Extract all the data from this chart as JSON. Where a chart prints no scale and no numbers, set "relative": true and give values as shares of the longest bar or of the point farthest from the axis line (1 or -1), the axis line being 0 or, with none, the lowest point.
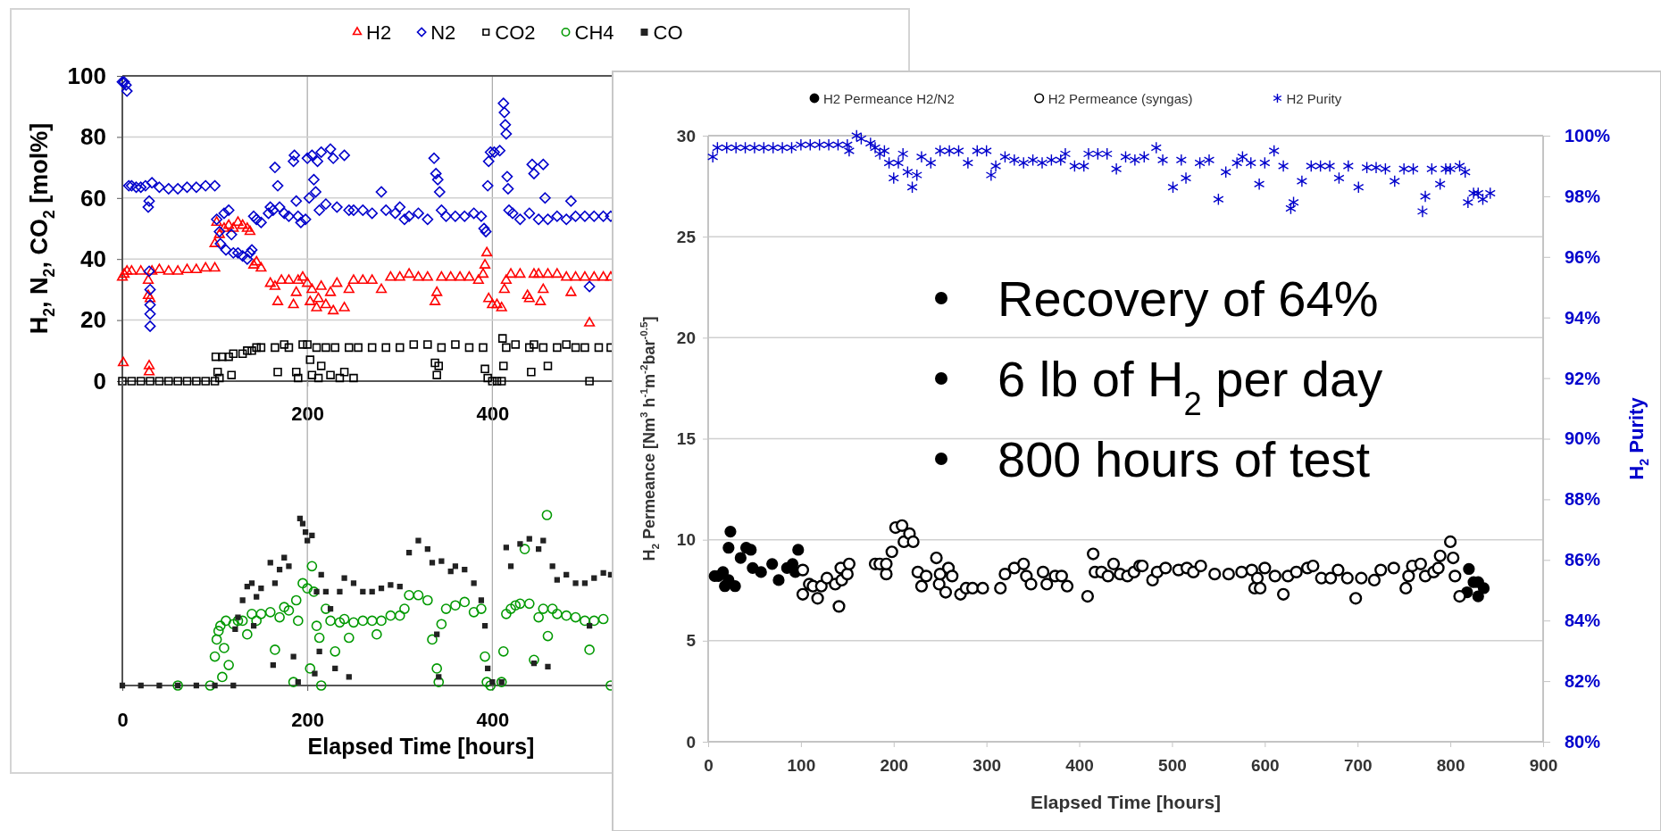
{
  "chart_data": [
    {
      "type": "scatter",
      "ylabel": "H$_{2}$, N$_{2}$, CO$_{2}$ [mol%]",
      "xlim": [
        0,
        530
      ],
      "xticks": [
        200,
        400
      ],
      "ylim": [
        0,
        100
      ],
      "yticks": [
        0,
        20,
        40,
        60,
        80,
        100
      ],
      "grid": true,
      "legend": "top",
      "series": [
        {
          "name": "H2",
          "color": "#ff0000",
          "marker": "triangle-open",
          "x": [
            0,
            1,
            2,
            5,
            10,
            20,
            28,
            28,
            29,
            29,
            30,
            32,
            40,
            50,
            60,
            70,
            80,
            90,
            100,
            100,
            102,
            105,
            110,
            115,
            120,
            125,
            130,
            135,
            138,
            142,
            145,
            150,
            160,
            165,
            168,
            172,
            180,
            185,
            188,
            190,
            195,
            200,
            203,
            205,
            210,
            212,
            215,
            220,
            225,
            228,
            232,
            240,
            245,
            250,
            260,
            270,
            280,
            290,
            300,
            310,
            320,
            330,
            338,
            340,
            345,
            355,
            365,
            375,
            385,
            390,
            392,
            394,
            396,
            400,
            405,
            410,
            413,
            415,
            420,
            430,
            438,
            440,
            445,
            450,
            452,
            455,
            460,
            470,
            480,
            485,
            490,
            500,
            505,
            510,
            520,
            528
          ],
          "values": [
            34,
            6,
            35,
            36,
            36,
            36,
            33,
            28,
            5,
            3,
            27,
            36,
            36.5,
            36,
            36,
            36.5,
            36.5,
            37,
            37,
            45,
            52,
            48,
            50,
            51,
            50,
            52,
            51,
            50,
            49,
            38,
            39,
            37,
            32,
            31,
            26,
            33,
            33,
            25,
            29,
            33,
            34,
            32,
            26,
            30,
            24,
            27,
            31,
            25,
            29,
            23,
            32,
            24,
            30,
            33,
            33,
            33,
            30,
            34,
            34,
            35,
            34,
            34,
            26,
            29,
            34,
            34,
            34,
            34,
            33,
            35,
            38,
            42,
            27,
            25,
            25,
            24,
            30,
            33,
            35,
            35,
            28,
            27,
            35,
            35,
            26,
            30,
            35,
            35,
            34,
            29,
            34,
            34,
            19,
            34,
            34,
            34
          ]
        },
        {
          "name": "N2",
          "color": "#0000cc",
          "marker": "diamond-open",
          "x": [
            0,
            2,
            4,
            5,
            7,
            10,
            15,
            20,
            25,
            28,
            29,
            29,
            30,
            30,
            30,
            30,
            32,
            40,
            50,
            60,
            70,
            80,
            90,
            100,
            102,
            105,
            106,
            110,
            112,
            115,
            118,
            120,
            125,
            130,
            135,
            138,
            140,
            142,
            145,
            150,
            158,
            160,
            163,
            165,
            168,
            170,
            175,
            180,
            185,
            186,
            188,
            190,
            193,
            198,
            200,
            202,
            205,
            207,
            209,
            211,
            213,
            215,
            220,
            225,
            228,
            232,
            240,
            245,
            250,
            260,
            270,
            280,
            285,
            295,
            300,
            305,
            310,
            320,
            330,
            337,
            339,
            341,
            343,
            345,
            350,
            360,
            370,
            380,
            388,
            391,
            393,
            395,
            396,
            398,
            402,
            408,
            412,
            413,
            414,
            415,
            416,
            417,
            418,
            422,
            430,
            440,
            443,
            445,
            450,
            455,
            457,
            460,
            470,
            480,
            485,
            490,
            500,
            505,
            510,
            520,
            528
          ],
          "values": [
            98,
            98,
            97,
            95,
            64,
            64,
            63.5,
            63.5,
            64,
            57,
            59,
            36,
            30,
            25,
            22,
            18,
            65,
            63.5,
            63,
            63,
            63.5,
            63.5,
            64,
            64,
            53,
            49,
            45,
            55,
            43,
            56,
            48,
            42,
            42,
            41,
            40,
            42,
            43,
            54,
            53,
            52,
            55,
            57,
            56,
            70,
            64,
            57,
            55,
            54,
            72,
            74,
            59,
            54,
            52,
            53,
            73,
            60,
            74,
            66,
            62,
            72,
            56,
            75,
            58,
            76,
            73,
            57,
            74,
            56,
            56,
            56,
            55,
            62,
            56,
            55,
            57,
            53,
            54,
            55,
            53,
            73,
            68,
            66,
            62,
            56,
            54,
            54,
            54,
            55,
            54,
            50,
            49,
            64,
            72,
            75,
            75,
            75.5,
            91,
            88,
            84,
            81,
            67,
            63,
            56,
            55,
            53,
            55,
            71,
            68,
            53,
            71,
            60,
            53,
            54,
            53,
            59,
            54,
            54,
            31,
            54,
            54,
            54
          ]
        },
        {
          "name": "CO2",
          "color": "#000000",
          "marker": "square-open",
          "x": [
            0,
            10,
            20,
            30,
            40,
            50,
            60,
            70,
            80,
            90,
            100,
            101,
            103,
            105,
            108,
            115,
            118,
            120,
            130,
            135,
            140,
            145,
            150,
            165,
            168,
            175,
            180,
            188,
            190,
            195,
            200,
            203,
            205,
            210,
            212,
            215,
            220,
            225,
            230,
            235,
            240,
            245,
            250,
            255,
            270,
            285,
            300,
            315,
            330,
            338,
            340,
            342,
            345,
            360,
            375,
            390,
            392,
            395,
            400,
            405,
            410,
            411,
            412,
            415,
            425,
            440,
            442,
            445,
            455,
            460,
            470,
            480,
            490,
            500,
            505,
            515,
            528
          ],
          "values": [
            0,
            0,
            0,
            0,
            0,
            0,
            0,
            0,
            0,
            0,
            0,
            8,
            3,
            1,
            8,
            8,
            2,
            9,
            9,
            10,
            10,
            11,
            11,
            11,
            3,
            12,
            11,
            3,
            1,
            12,
            12,
            7,
            2,
            11,
            1,
            5,
            11,
            2,
            11,
            1,
            3,
            11,
            1,
            11,
            11,
            11,
            11,
            12,
            12,
            6,
            2,
            5,
            11,
            12,
            11,
            11,
            4,
            1,
            0,
            0,
            0,
            14,
            5,
            11,
            12,
            11,
            3,
            12,
            11,
            5,
            11,
            12,
            11,
            11,
            0,
            11,
            11
          ]
        }
      ]
    },
    {
      "type": "scatter",
      "xlabel": "Elapsed Time [hours]",
      "xlim": [
        0,
        530
      ],
      "xticks": [
        0,
        200,
        400
      ],
      "relative": true,
      "tick_labels": "x",
      "grid": "x",
      "legend": "top",
      "series": [
        {
          "name": "CH4",
          "color": "#009900",
          "marker": "circle-open",
          "x": [
            60,
            95,
            100,
            102,
            104,
            106,
            108,
            110,
            112,
            115,
            120,
            125,
            130,
            135,
            140,
            145,
            150,
            160,
            165,
            170,
            175,
            180,
            185,
            188,
            190,
            195,
            200,
            203,
            205,
            207,
            210,
            213,
            215,
            220,
            225,
            230,
            235,
            240,
            245,
            250,
            260,
            270,
            275,
            280,
            290,
            300,
            305,
            310,
            320,
            330,
            335,
            340,
            342,
            345,
            350,
            360,
            370,
            380,
            388,
            392,
            394,
            398,
            410,
            412,
            415,
            420,
            425,
            430,
            435,
            440,
            445,
            450,
            455,
            459,
            460,
            465,
            470,
            480,
            490,
            500,
            505,
            510,
            520,
            528
          ],
          "values": [
            0,
            0,
            0.17,
            0.27,
            0.32,
            0.35,
            0.05,
            0.22,
            0.38,
            0.12,
            0.36,
            0.38,
            0.38,
            0.3,
            0.42,
            0.38,
            0.42,
            0.43,
            0.21,
            0.4,
            0.46,
            0.44,
            0.02,
            0.5,
            0.38,
            0.6,
            0.57,
            0.1,
            0.7,
            0.55,
            0.35,
            0.28,
            0,
            0.45,
            0.38,
            0.2,
            0.37,
            0.39,
            0.28,
            0.37,
            0.38,
            0.38,
            0.3,
            0.38,
            0.41,
            0.41,
            0.45,
            0.53,
            0.53,
            0.5,
            0.27,
            0.1,
            0.02,
            0.36,
            0.45,
            0.47,
            0.49,
            0.43,
            0.45,
            0.17,
            0.02,
            0,
            0.02,
            0.2,
            0.42,
            0.45,
            0.47,
            0.48,
            0.8,
            0.48,
            0.15,
            0.4,
            0.45,
            1,
            0.29,
            0.45,
            0.42,
            0.41,
            0.4,
            0.38,
            0.21,
            0.38,
            0.39,
            0
          ]
        },
        {
          "name": "CO",
          "color": "#222222",
          "marker": "square",
          "x": [
            0,
            20,
            40,
            60,
            80,
            100,
            120,
            122,
            125,
            130,
            135,
            140,
            142,
            145,
            150,
            160,
            163,
            165,
            170,
            175,
            180,
            185,
            190,
            192,
            195,
            198,
            200,
            205,
            208,
            210,
            213,
            215,
            220,
            225,
            230,
            235,
            240,
            245,
            250,
            260,
            270,
            280,
            290,
            300,
            310,
            320,
            330,
            335,
            340,
            342,
            345,
            355,
            360,
            370,
            380,
            388,
            392,
            395,
            400,
            410,
            415,
            420,
            430,
            440,
            445,
            450,
            455,
            460,
            465,
            470,
            480,
            490,
            500,
            505,
            510,
            520,
            528
          ],
          "values": [
            0,
            0,
            0,
            0,
            0,
            0,
            0,
            0.33,
            0.4,
            0.5,
            0.58,
            0.6,
            0.35,
            0.52,
            0.57,
            0.72,
            0.12,
            0.6,
            0.68,
            0.75,
            0.7,
            0.17,
            0.02,
            0.98,
            0.95,
            0.9,
            0.85,
            0.88,
            0.07,
            0.55,
            0.2,
            0.65,
            0.55,
            0.45,
            0.1,
            0.55,
            0.63,
            0.05,
            0.6,
            0.55,
            0.55,
            0.57,
            0.59,
            0.58,
            0.78,
            0.85,
            0.8,
            0.72,
            0.3,
            0.05,
            0.73,
            0.67,
            0.7,
            0.68,
            0.6,
            0.5,
            0.35,
            0.1,
            0.02,
            0.02,
            0.81,
            0.7,
            0.83,
            0.86,
            0.13,
            0.8,
            0.85,
            0.11,
            0.7,
            0.62,
            0.65,
            0.6,
            0.6,
            0.35,
            0.63,
            0.66,
            0.65
          ]
        }
      ]
    },
    {
      "type": "scatter",
      "xlabel": "Elapsed Time [hours]",
      "ylabel": "H$_{2}$ Permeance [Nm$^{3}$ h$^{-1}$m$^{-2}$bar$^{-0.5}$]",
      "y2label": "H$_{2}$ Purity",
      "xlim": [
        0,
        900
      ],
      "xticks": [
        0,
        100,
        200,
        300,
        400,
        500,
        600,
        700,
        800,
        900
      ],
      "ylim": [
        0,
        30
      ],
      "yticks": [
        0,
        5,
        10,
        15,
        20,
        25,
        30
      ],
      "y2lim": [
        80,
        100
      ],
      "y2ticks": [
        {
          "value": 80,
          "label": "80%"
        },
        {
          "value": 82,
          "label": "82%"
        },
        {
          "value": 84,
          "label": "84%"
        },
        {
          "value": 86,
          "label": "86%"
        },
        {
          "value": 88,
          "label": "88%"
        },
        {
          "value": 90,
          "label": "90%"
        },
        {
          "value": 92,
          "label": "92%"
        },
        {
          "value": 94,
          "label": "94%"
        },
        {
          "value": 96,
          "label": "96%"
        },
        {
          "value": 98,
          "label": "98%"
        },
        {
          "value": 100,
          "label": "100%"
        }
      ],
      "grid": "y",
      "legend": "top",
      "annotations": [
        "Recovery of 64%",
        "6 lb of H$_{2}$ per day",
        "800 hours of test"
      ],
      "series": [
        {
          "name": "H2 Permeance H2/N2",
          "color": "#000000",
          "marker": "circle",
          "x": [
            7,
            11,
            16,
            18,
            22,
            22,
            24,
            29,
            35,
            41,
            46,
            48,
            57,
            69,
            76,
            85,
            91,
            94,
            97,
            818,
            820,
            825,
            830,
            830,
            836
          ],
          "values": [
            8.2,
            8.2,
            8.4,
            7.7,
            8.0,
            9.6,
            10.4,
            7.7,
            9.1,
            9.6,
            9.5,
            8.6,
            8.4,
            8.8,
            8.0,
            8.6,
            8.8,
            8.4,
            9.5,
            7.4,
            8.55,
            7.9,
            7.9,
            7.2,
            7.6
          ]
        },
        {
          "name": "H2 Permeance (syngas)",
          "color": "#000000",
          "marker": "circle-open",
          "x": [
            102,
            102,
            109,
            113,
            118,
            122,
            128,
            137,
            141,
            143,
            144,
            150,
            152,
            180,
            185,
            192,
            192,
            198,
            202,
            209,
            211,
            217,
            221,
            226,
            230,
            235,
            246,
            249,
            250,
            256,
            259,
            263,
            272,
            278,
            285,
            296,
            315,
            320,
            330,
            340,
            343,
            348,
            361,
            365,
            374,
            381,
            387,
            409,
            415,
            417,
            424,
            431,
            437,
            444,
            452,
            459,
            465,
            468,
            479,
            484,
            493,
            507,
            516,
            523,
            531,
            546,
            561,
            575,
            586,
            589,
            592,
            595,
            600,
            611,
            620,
            625,
            634,
            646,
            652,
            661,
            671,
            679,
            689,
            698,
            704,
            718,
            725,
            739,
            752,
            755,
            759,
            768,
            773,
            782,
            787,
            789,
            800,
            803,
            805,
            810
          ],
          "values": [
            8.5,
            7.3,
            7.8,
            7.7,
            7.1,
            7.7,
            8.1,
            7.8,
            6.7,
            8.6,
            8.0,
            8.3,
            8.8,
            8.8,
            8.8,
            8.3,
            8.8,
            9.4,
            10.6,
            10.7,
            9.9,
            10.3,
            9.9,
            8.4,
            7.7,
            8.2,
            9.1,
            7.8,
            8.3,
            7.4,
            8.6,
            8.2,
            7.3,
            7.6,
            7.6,
            7.6,
            7.6,
            8.3,
            8.6,
            8.8,
            8.2,
            7.8,
            8.4,
            7.8,
            8.2,
            8.2,
            7.7,
            7.2,
            9.3,
            8.4,
            8.4,
            8.2,
            8.8,
            8.3,
            8.2,
            8.4,
            8.7,
            8.7,
            8.0,
            8.4,
            8.6,
            8.5,
            8.6,
            8.4,
            8.7,
            8.3,
            8.3,
            8.4,
            8.5,
            7.6,
            8.1,
            7.6,
            8.6,
            8.2,
            7.3,
            8.2,
            8.4,
            8.6,
            8.7,
            8.1,
            8.1,
            8.5,
            8.1,
            7.1,
            8.1,
            8.0,
            8.5,
            8.6,
            7.6,
            8.2,
            8.7,
            8.8,
            8.2,
            8.4,
            8.6,
            9.2,
            9.9,
            9.1,
            8.2,
            7.2
          ]
        },
        {
          "name": "H2 Purity",
          "color": "#0000cc",
          "marker": "cross",
          "axis": "y2",
          "x": [
            5,
            10,
            20,
            30,
            40,
            50,
            60,
            70,
            80,
            90,
            100,
            110,
            120,
            130,
            140,
            150,
            152,
            160,
            165,
            175,
            180,
            185,
            190,
            195,
            200,
            205,
            210,
            215,
            220,
            225,
            230,
            240,
            250,
            260,
            270,
            280,
            290,
            300,
            305,
            310,
            320,
            330,
            340,
            350,
            360,
            370,
            380,
            385,
            395,
            405,
            410,
            420,
            430,
            440,
            450,
            460,
            470,
            483,
            490,
            501,
            510,
            515,
            530,
            540,
            550,
            558,
            570,
            576,
            585,
            594,
            600,
            610,
            620,
            628,
            631,
            640,
            650,
            660,
            670,
            680,
            690,
            701,
            710,
            720,
            730,
            740,
            750,
            760,
            770,
            773,
            780,
            789,
            795,
            800,
            810,
            816,
            819,
            825,
            830,
            835,
            843
          ],
          "values": [
            99.3,
            99.6,
            99.6,
            99.6,
            99.6,
            99.6,
            99.6,
            99.6,
            99.6,
            99.6,
            99.7,
            99.7,
            99.7,
            99.7,
            99.7,
            99.7,
            99.5,
            100,
            99.9,
            99.75,
            99.6,
            99.4,
            99.5,
            99.1,
            98.6,
            99.1,
            99.4,
            98.8,
            98.3,
            98.7,
            99.3,
            99.1,
            99.5,
            99.5,
            99.5,
            99.1,
            99.5,
            99.5,
            98.7,
            99.0,
            99.3,
            99.2,
            99.1,
            99.2,
            99.1,
            99.2,
            99.2,
            99.4,
            99.0,
            99.0,
            99.4,
            99.4,
            99.4,
            98.9,
            99.3,
            99.2,
            99.3,
            99.6,
            99.2,
            98.3,
            99.2,
            98.6,
            99.1,
            99.2,
            97.9,
            98.8,
            99.1,
            99.3,
            99.1,
            98.4,
            99.1,
            99.5,
            99.0,
            97.6,
            97.8,
            98.5,
            99.0,
            99.0,
            99.0,
            98.6,
            99.0,
            98.3,
            98.95,
            98.95,
            98.9,
            98.5,
            98.9,
            98.9,
            97.5,
            98.0,
            98.9,
            98.4,
            98.9,
            98.9,
            99.0,
            98.8,
            97.8,
            98.1,
            98.1,
            97.9,
            98.1
          ]
        }
      ]
    }
  ]
}
